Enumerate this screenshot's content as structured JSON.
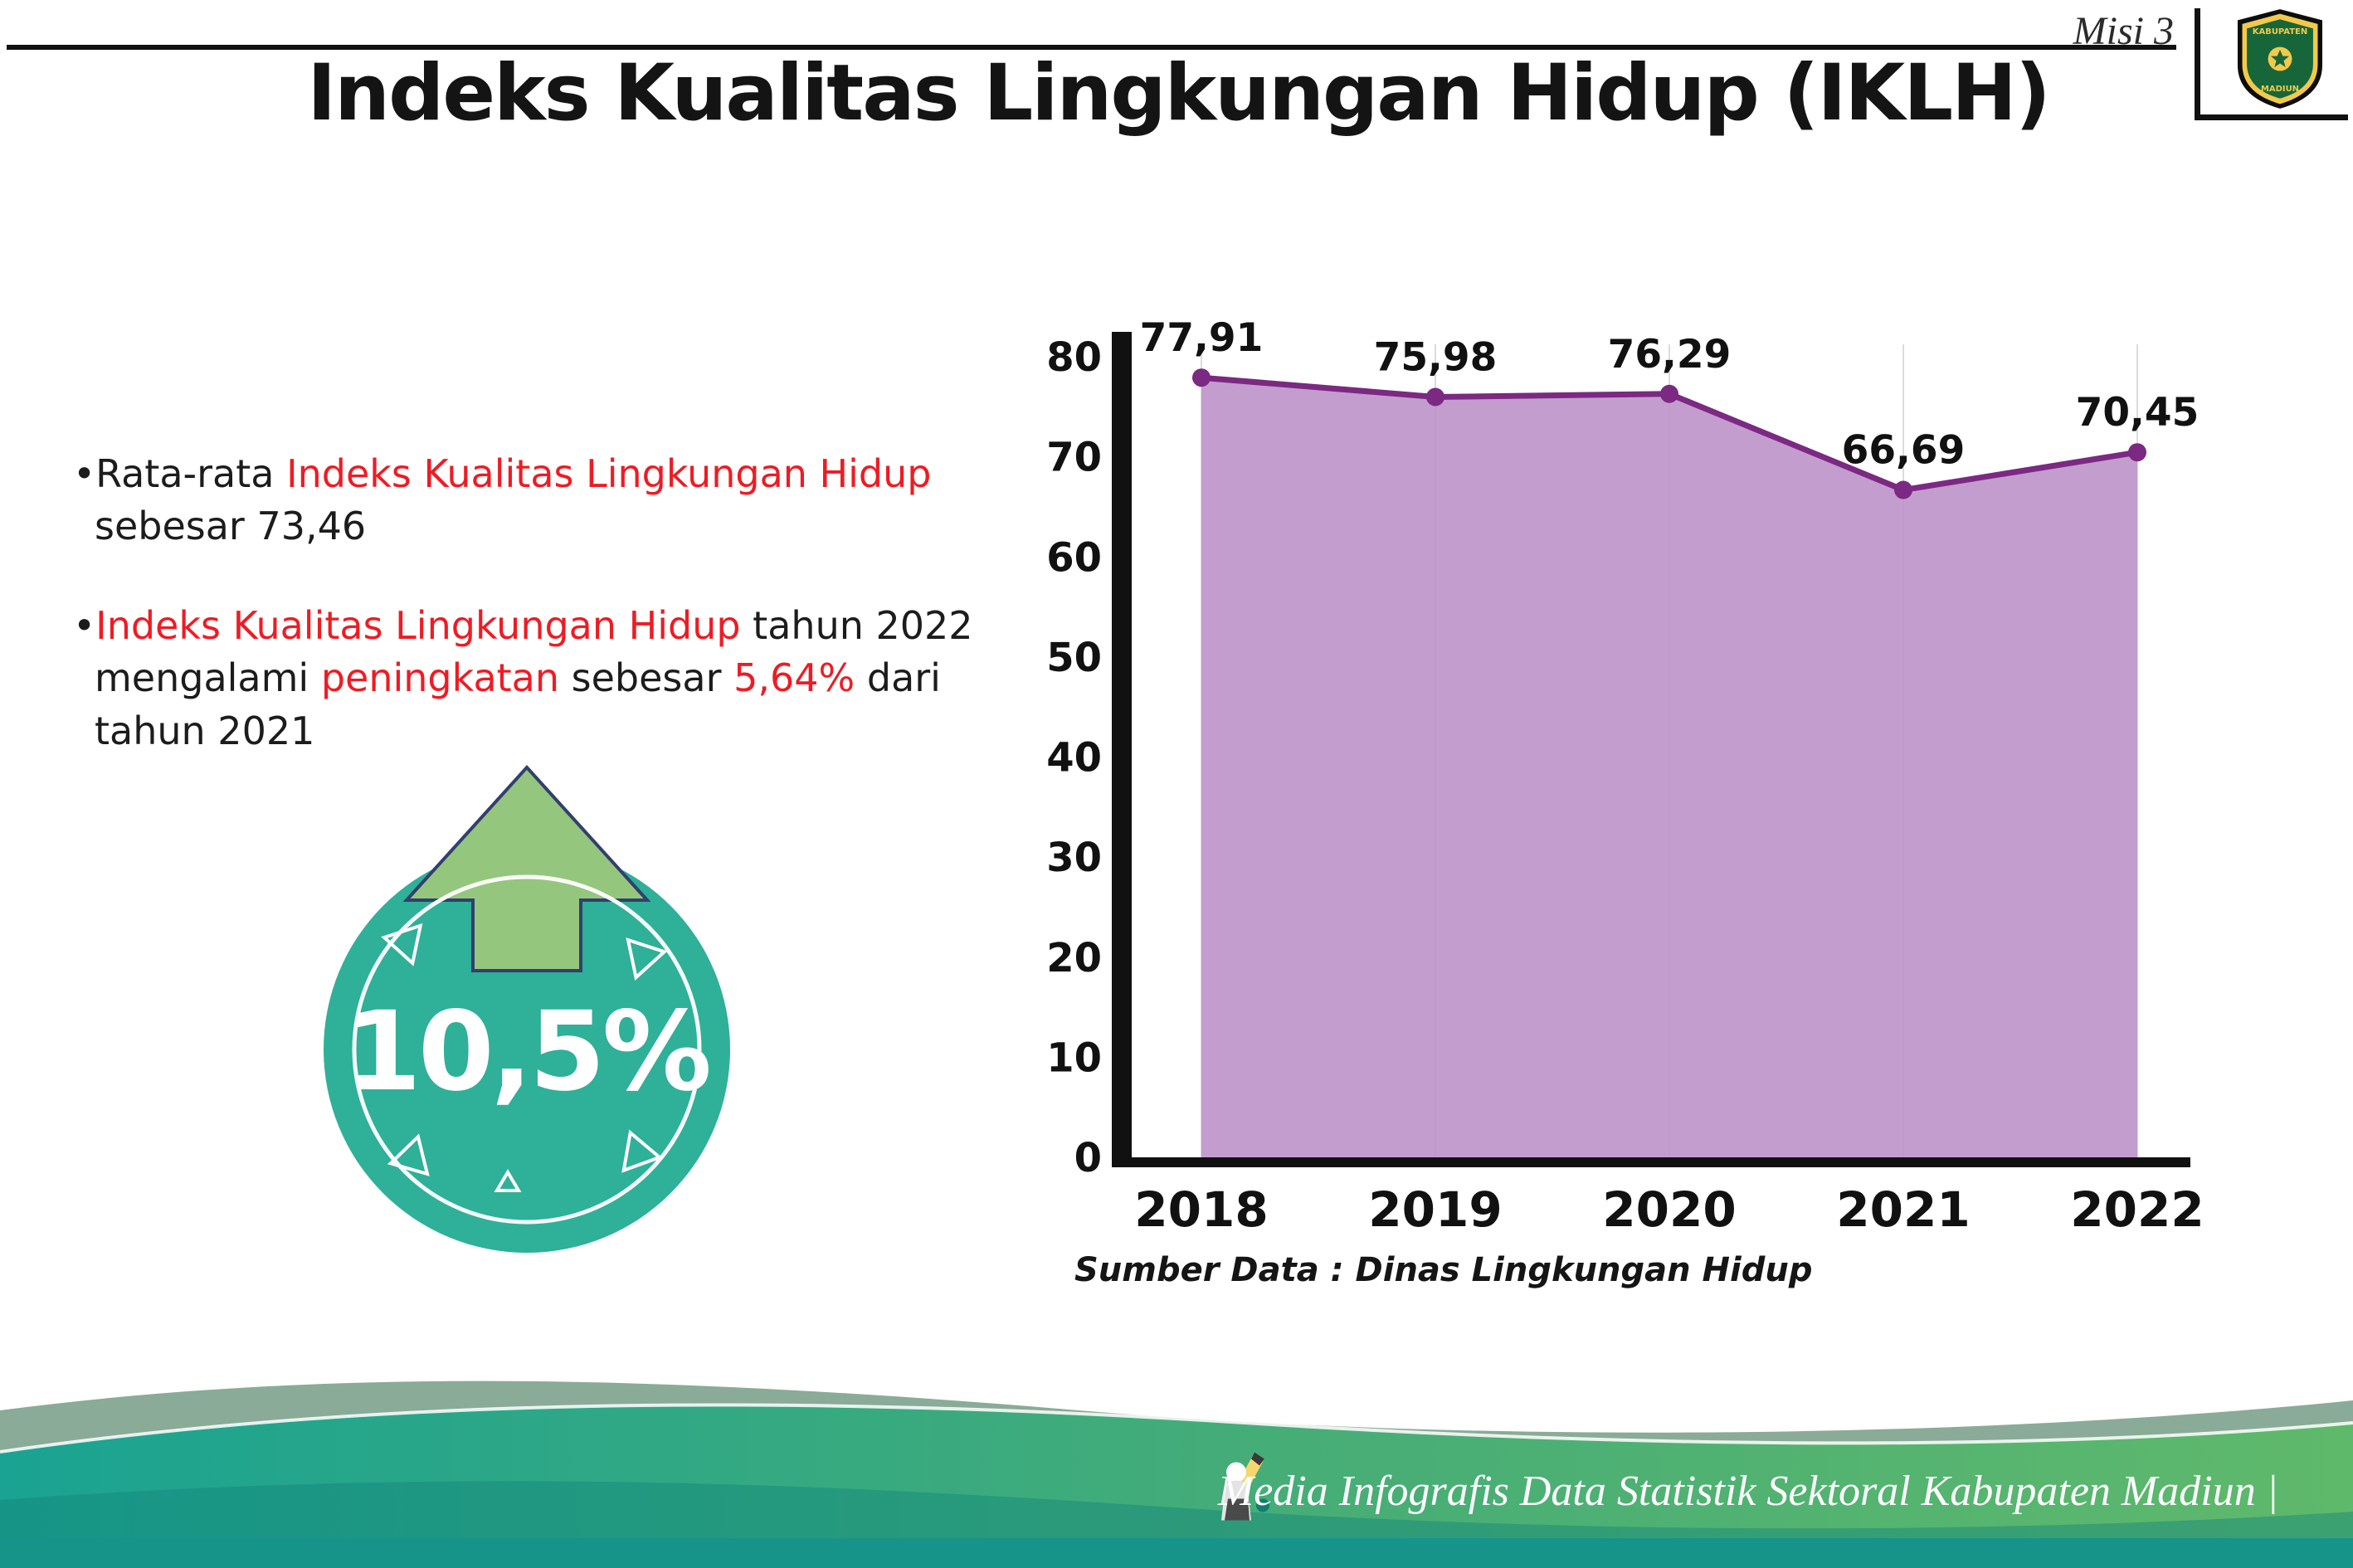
{
  "header": {
    "misi": "Misi 3",
    "title": "Indeks Kualitas Lingkungan Hidup (IKLH)"
  },
  "logo": {
    "top_text": "KABUPATEN",
    "bottom_text": "MADIUN"
  },
  "bullets": {
    "b1": {
      "marker": "•",
      "parts": [
        {
          "text": "Rata-rata "
        },
        {
          "text": "Indeks Kualitas Lingkungan Hidup"
        },
        {
          "text": " sebesar 73,46"
        }
      ]
    },
    "b2": {
      "marker": "•",
      "parts": [
        {
          "text": "Indeks Kualitas Lingkungan Hidup"
        },
        {
          "text": " tahun 2022 mengalami "
        },
        {
          "text": "peningkatan"
        },
        {
          "text": " sebesar "
        },
        {
          "text": "5,64%"
        },
        {
          "text": " dari tahun 2021"
        }
      ]
    }
  },
  "badge": {
    "value": "10,5%"
  },
  "chart_data": {
    "type": "area",
    "categories": [
      "2018",
      "2019",
      "2020",
      "2021",
      "2022"
    ],
    "values": [
      77.91,
      75.98,
      76.29,
      66.69,
      70.45
    ],
    "point_labels": [
      "77,91",
      "75,98",
      "76,29",
      "66,69",
      "70,45"
    ],
    "yticks": [
      0,
      10,
      20,
      30,
      40,
      50,
      60,
      70,
      80
    ],
    "ylim": [
      0,
      80
    ],
    "grid": true,
    "line_color": "#7b2982",
    "fill_color": "#bd92c9",
    "source": "Sumber Data : Dinas Lingkungan Hidup"
  },
  "footer": {
    "caption": "Media Infografis Data Statistik Sektoral Kabupaten Madiun |"
  },
  "colors": {
    "red": "#ed1c24",
    "text": "#1c1c1c",
    "badge_teal": "#2fb098",
    "arrow_green": "#95c67d",
    "footer_teal": "#1aa392",
    "footer_green": "#5fb96b"
  }
}
